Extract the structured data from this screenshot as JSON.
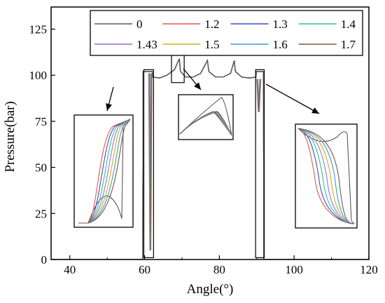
{
  "chart_data": {
    "type": "line",
    "title": "",
    "xlabel": "Angle(°)",
    "ylabel": "Pressure(bar)",
    "xlim": [
      35,
      120
    ],
    "ylim": [
      0,
      137
    ],
    "x_ticks": [
      "40",
      "60",
      "80",
      "100",
      "120"
    ],
    "y_ticks": [
      "0",
      "25",
      "50",
      "75",
      "100",
      "125"
    ],
    "grid": false,
    "legend_position": "top-right",
    "legend_columns": 4,
    "series": [
      {
        "name": "0",
        "color": "#5a5a5a"
      },
      {
        "name": "1.2",
        "color": "#e3564b"
      },
      {
        "name": "1.3",
        "color": "#3a4fc9"
      },
      {
        "name": "1.4",
        "color": "#35c08a"
      },
      {
        "name": "1.43",
        "color": "#9b6fdc"
      },
      {
        "name": "1.5",
        "color": "#c9b21d"
      },
      {
        "name": "1.6",
        "color": "#3a9ad6"
      },
      {
        "name": "1.7",
        "color": "#7a5545"
      }
    ],
    "profile": {
      "base": [
        [
          35,
          0
        ],
        [
          59.5,
          0
        ],
        [
          59.6,
          102
        ],
        [
          62.1,
          102
        ],
        [
          62.2,
          99
        ],
        [
          64,
          98.5
        ],
        [
          66,
          100
        ],
        [
          68,
          103
        ],
        [
          69.3,
          109
        ],
        [
          69.6,
          102
        ],
        [
          71,
          99
        ],
        [
          73,
          99
        ],
        [
          75,
          101
        ],
        [
          76.8,
          108
        ],
        [
          77.2,
          102
        ],
        [
          79,
          99
        ],
        [
          81,
          99
        ],
        [
          83,
          101
        ],
        [
          84,
          108
        ],
        [
          84.3,
          102
        ],
        [
          86,
          99
        ],
        [
          88,
          98.5
        ],
        [
          89.8,
          99
        ],
        [
          89.9,
          102
        ],
        [
          91.8,
          102
        ],
        [
          91.9,
          0
        ],
        [
          120,
          0
        ]
      ],
      "dip_left": {
        "x": [
          61.1,
          61.4,
          61.7
        ],
        "min": 5,
        "top": 101
      },
      "dip_right": {
        "x": [
          90.3,
          90.7,
          91.1
        ],
        "min": 80,
        "top": 98
      }
    },
    "zoom_insets": [
      {
        "source_x": [
          59.8,
          62.4
        ],
        "source_y": [
          1,
          103
        ],
        "curve": "rise"
      },
      {
        "source_x": [
          67.2,
          70.6
        ],
        "source_y": [
          96,
          111
        ],
        "curve": "peak"
      },
      {
        "source_x": [
          89.7,
          92.0
        ],
        "source_y": [
          1,
          103
        ],
        "curve": "fall"
      }
    ]
  }
}
